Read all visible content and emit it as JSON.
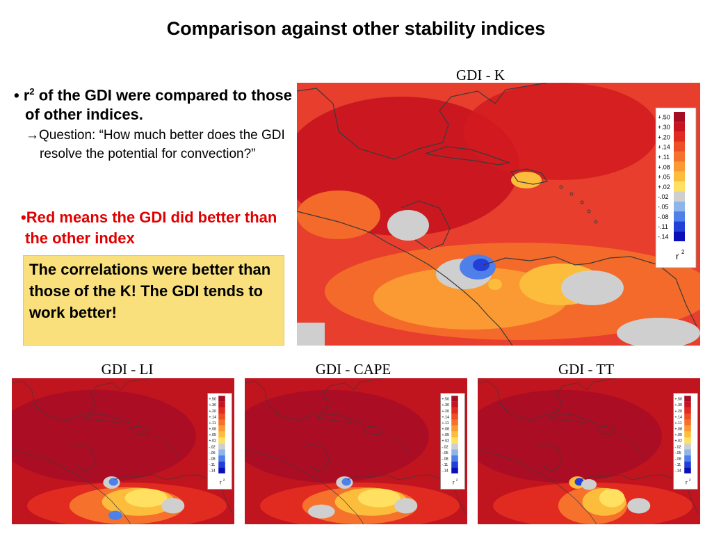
{
  "slide": {
    "title": "Comparison against other stability indices",
    "bullet1_prefix": "r",
    "bullet1_sup": "2",
    "bullet1_text": " of the GDI were compared to those of other indices.",
    "bullet2_arrow": "→",
    "bullet2_text": "Question: “How much better does the GDI resolve the potential for convection?”",
    "bullet3_text": "Red means the GDI did better than the other index",
    "callout_text": "The correlations were better than those of the K! The GDI tends to work better!"
  },
  "maps": [
    {
      "label": "GDI - K"
    },
    {
      "label": "GDI - LI"
    },
    {
      "label": "GDI - CAPE"
    },
    {
      "label": "GDI - TT"
    }
  ],
  "legend": {
    "title": "r",
    "title_sup": "2",
    "ticks": [
      "+.50",
      "+.30",
      "+.20",
      "+.14",
      "+.11",
      "+.08",
      "+.05",
      "+.02",
      "-.02",
      "-.05",
      "-.08",
      "-.11",
      "-.14"
    ],
    "colors": [
      "#a50d25",
      "#c8141f",
      "#e12a20",
      "#ef4f25",
      "#f6722c",
      "#fb9a32",
      "#fdbd3c",
      "#ffe060",
      "#cfcfcf",
      "#8eb4ea",
      "#4f7fe8",
      "#2240d8",
      "#0a10b8"
    ]
  }
}
